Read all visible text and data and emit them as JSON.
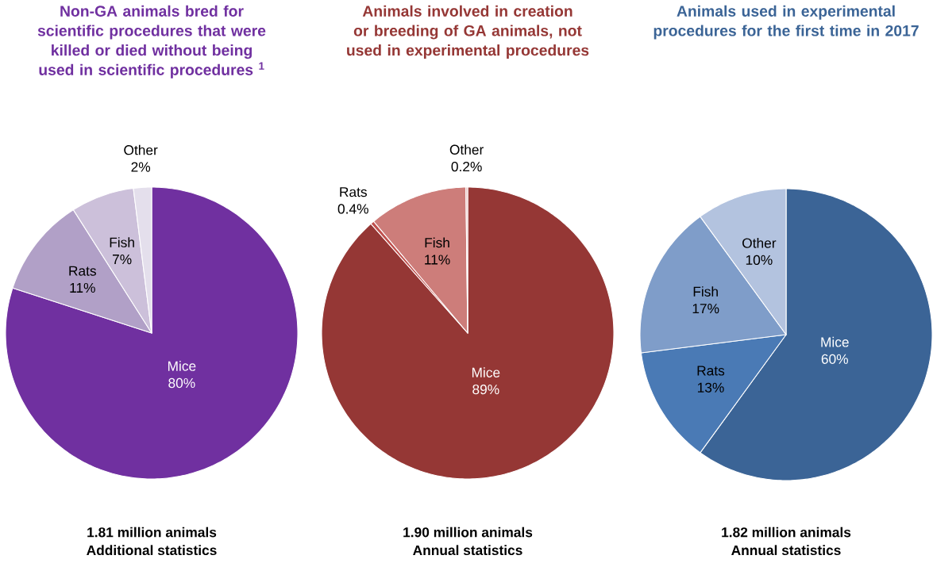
{
  "chart_data": [
    {
      "type": "pie",
      "title": "Non-GA animals bred for scientific procedures that were killed or died without being used in scientific procedures $^{1}$",
      "categories": [
        "Mice",
        "Rats",
        "Fish",
        "Other"
      ],
      "values": [
        80,
        11,
        7,
        2
      ],
      "value_labels": [
        "80%",
        "11%",
        "7%",
        "2%"
      ],
      "colors": [
        "#7030a0",
        "#b1a0c7",
        "#ccc0da",
        "#e4dfec"
      ],
      "annotations": [
        "1.81 million animals",
        "Additional statistics"
      ]
    },
    {
      "type": "pie",
      "title": "Animals involved in creation or breeding of GA animals, not used in experimental procedures",
      "categories": [
        "Mice",
        "Rats",
        "Fish",
        "Other"
      ],
      "values": [
        89,
        0.4,
        11,
        0.2
      ],
      "value_labels": [
        "89%",
        "0.4%",
        "11%",
        "0.2%"
      ],
      "colors": [
        "#953735",
        "#c0504d",
        "#cd7d7a",
        "#e6b9b8"
      ],
      "annotations": [
        "1.90 million animals",
        "Annual statistics"
      ]
    },
    {
      "type": "pie",
      "title": "Animals used in experimental procedures for the first time in 2017",
      "categories": [
        "Mice",
        "Rats",
        "Fish",
        "Other"
      ],
      "values": [
        60,
        13,
        17,
        10
      ],
      "value_labels": [
        "60%",
        "13%",
        "17%",
        "10%"
      ],
      "colors": [
        "#3b6496",
        "#4a7ab5",
        "#7f9dc9",
        "#b3c3df"
      ],
      "annotations": [
        "1.82 million animals",
        "Annual statistics"
      ]
    }
  ]
}
